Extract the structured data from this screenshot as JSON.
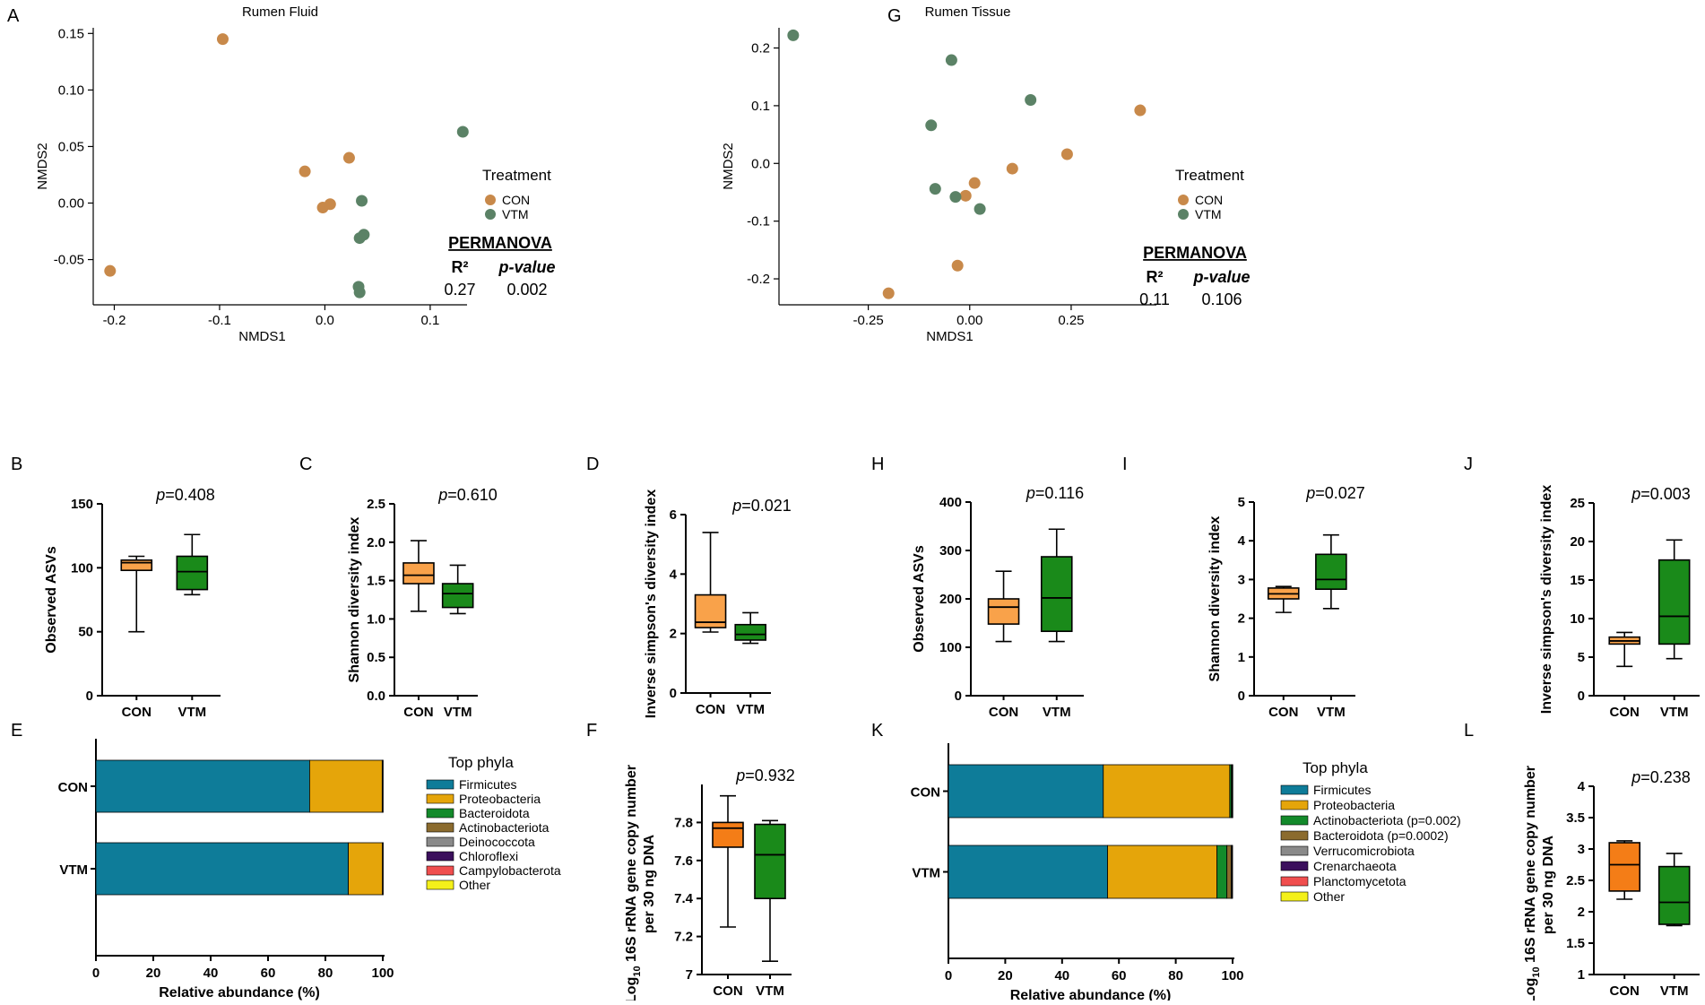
{
  "panel_labels": {
    "A": "A",
    "B": "B",
    "C": "C",
    "D": "D",
    "E": "E",
    "F": "F",
    "G": "G",
    "H": "H",
    "I": "I",
    "J": "J",
    "K": "K",
    "L": "L"
  },
  "colors": {
    "con_point": "#C8894A",
    "vtm_point": "#5B8266",
    "con_box": "#F9A24A",
    "vtm_box": "#1A8A1A",
    "con_box_qpcr": "#F47D17"
  },
  "chart_data": [
    {
      "id": "A",
      "type": "scatter",
      "title": "Rumen Fluid",
      "xlabel": "NMDS1",
      "ylabel": "NMDS2",
      "xlim": [
        -0.22,
        0.135
      ],
      "ylim": [
        -0.09,
        0.155
      ],
      "xticks": [
        -0.2,
        -0.1,
        0.0,
        0.1
      ],
      "xtick_labels": [
        "-0.2",
        "-0.1",
        "0.0",
        "0.1"
      ],
      "yticks": [
        -0.05,
        0.0,
        0.05,
        0.1,
        0.15
      ],
      "ytick_labels": [
        "-0.05",
        "0.00",
        "0.05",
        "0.10",
        "0.15"
      ],
      "legend_title": "Treatment",
      "series": [
        {
          "name": "CON",
          "points": [
            [
              -0.097,
              0.145
            ],
            [
              -0.019,
              0.028
            ],
            [
              0.023,
              0.04
            ],
            [
              -0.002,
              -0.004
            ],
            [
              0.005,
              -0.001
            ],
            [
              -0.204,
              -0.06
            ]
          ]
        },
        {
          "name": "VTM",
          "points": [
            [
              0.131,
              0.063
            ],
            [
              0.035,
              0.002
            ],
            [
              0.037,
              -0.028
            ],
            [
              0.033,
              -0.031
            ],
            [
              0.032,
              -0.074
            ],
            [
              0.033,
              -0.079
            ]
          ]
        }
      ],
      "permanova": {
        "heading": "PERMANOVA",
        "r2_label": "R²",
        "p_label": "p-value",
        "r2": "0.27",
        "p": "0.002"
      }
    },
    {
      "id": "G",
      "type": "scatter",
      "title": "Rumen Tissue",
      "xlabel": "NMDS1",
      "ylabel": "NMDS2",
      "xlim": [
        -0.47,
        0.46
      ],
      "ylim": [
        -0.245,
        0.235
      ],
      "xticks": [
        -0.25,
        0.0,
        0.25
      ],
      "xtick_labels": [
        "-0.25",
        "0.00",
        "0.25"
      ],
      "yticks": [
        -0.2,
        -0.1,
        0.0,
        0.1,
        0.2
      ],
      "ytick_labels": [
        "-0.2",
        "-0.1",
        "0.0",
        "0.1",
        "0.2"
      ],
      "legend_title": "Treatment",
      "series": [
        {
          "name": "CON",
          "points": [
            [
              0.42,
              0.092
            ],
            [
              0.24,
              0.016
            ],
            [
              0.105,
              -0.009
            ],
            [
              0.012,
              -0.034
            ],
            [
              -0.01,
              -0.056
            ],
            [
              -0.03,
              -0.177
            ],
            [
              -0.2,
              -0.225
            ]
          ]
        },
        {
          "name": "VTM",
          "points": [
            [
              -0.435,
              0.222
            ],
            [
              -0.045,
              0.179
            ],
            [
              0.15,
              0.11
            ],
            [
              -0.095,
              0.066
            ],
            [
              -0.085,
              -0.044
            ],
            [
              -0.035,
              -0.058
            ],
            [
              0.025,
              -0.079
            ]
          ]
        }
      ],
      "permanova": {
        "heading": "PERMANOVA",
        "r2_label": "R²",
        "p_label": "p-value",
        "r2": "0.11",
        "p": "0.106"
      }
    },
    {
      "id": "B",
      "type": "boxplot",
      "ylabel": "Observed ASVs",
      "pvalue": "0.408",
      "ylim": [
        0,
        150
      ],
      "yticks": [
        0,
        50,
        100,
        150
      ],
      "ytick_labels": [
        "0",
        "50",
        "100",
        "150"
      ],
      "categories": [
        "CON",
        "VTM"
      ],
      "boxes": [
        {
          "name": "CON",
          "min": 50,
          "q1": 98,
          "median": 104,
          "q3": 106,
          "max": 109
        },
        {
          "name": "VTM",
          "min": 79,
          "q1": 83,
          "median": 97,
          "q3": 109,
          "max": 126
        }
      ]
    },
    {
      "id": "C",
      "type": "boxplot",
      "ylabel": "Shannon diversity index",
      "pvalue": "0.610",
      "ylim": [
        0,
        2.5
      ],
      "yticks": [
        0,
        0.5,
        1.0,
        1.5,
        2.0,
        2.5
      ],
      "ytick_labels": [
        "0.0",
        "0.5",
        "1.0",
        "1.5",
        "2.0",
        "2.5"
      ],
      "categories": [
        "CON",
        "VTM"
      ],
      "boxes": [
        {
          "name": "CON",
          "min": 1.1,
          "q1": 1.46,
          "median": 1.57,
          "q3": 1.73,
          "max": 2.02
        },
        {
          "name": "VTM",
          "min": 1.07,
          "q1": 1.15,
          "median": 1.33,
          "q3": 1.46,
          "max": 1.7
        }
      ]
    },
    {
      "id": "D",
      "type": "boxplot",
      "ylabel": "Inverse simpson's diversity index",
      "pvalue": "0.021",
      "ylim": [
        0,
        6
      ],
      "yticks": [
        0,
        2,
        4,
        6
      ],
      "ytick_labels": [
        "0",
        "2",
        "4",
        "6"
      ],
      "categories": [
        "CON",
        "VTM"
      ],
      "boxes": [
        {
          "name": "CON",
          "min": 2.05,
          "q1": 2.2,
          "median": 2.38,
          "q3": 3.3,
          "max": 5.4
        },
        {
          "name": "VTM",
          "min": 1.67,
          "q1": 1.78,
          "median": 1.97,
          "q3": 2.3,
          "max": 2.7
        }
      ]
    },
    {
      "id": "H",
      "type": "boxplot",
      "ylabel": "Observed ASVs",
      "pvalue": "0.116",
      "ylim": [
        0,
        400
      ],
      "yticks": [
        0,
        100,
        200,
        300,
        400
      ],
      "ytick_labels": [
        "0",
        "100",
        "200",
        "300",
        "400"
      ],
      "categories": [
        "CON",
        "VTM"
      ],
      "boxes": [
        {
          "name": "CON",
          "min": 112,
          "q1": 148,
          "median": 183,
          "q3": 200,
          "max": 257
        },
        {
          "name": "VTM",
          "min": 112,
          "q1": 133,
          "median": 202,
          "q3": 287,
          "max": 344
        }
      ]
    },
    {
      "id": "I",
      "type": "boxplot",
      "ylabel": "Shannon diversity index",
      "pvalue": "0.027",
      "ylim": [
        0,
        5
      ],
      "yticks": [
        0,
        1,
        2,
        3,
        4,
        5
      ],
      "ytick_labels": [
        "0",
        "1",
        "2",
        "3",
        "4",
        "5"
      ],
      "categories": [
        "CON",
        "VTM"
      ],
      "boxes": [
        {
          "name": "CON",
          "min": 2.15,
          "q1": 2.5,
          "median": 2.63,
          "q3": 2.78,
          "max": 2.82
        },
        {
          "name": "VTM",
          "min": 2.25,
          "q1": 2.75,
          "median": 3.0,
          "q3": 3.65,
          "max": 4.15
        }
      ]
    },
    {
      "id": "J",
      "type": "boxplot",
      "ylabel": "Inverse simpson's diversity index",
      "pvalue": "0.003",
      "ylim": [
        0,
        25
      ],
      "yticks": [
        0,
        5,
        10,
        15,
        20,
        25
      ],
      "ytick_labels": [
        "0",
        "5",
        "10",
        "15",
        "20",
        "25"
      ],
      "categories": [
        "CON",
        "VTM"
      ],
      "boxes": [
        {
          "name": "CON",
          "min": 3.8,
          "q1": 6.7,
          "median": 7.1,
          "q3": 7.6,
          "max": 8.2
        },
        {
          "name": "VTM",
          "min": 4.8,
          "q1": 6.7,
          "median": 10.3,
          "q3": 17.6,
          "max": 20.2
        }
      ]
    },
    {
      "id": "F",
      "type": "boxplot",
      "ylabel_parts": {
        "pre": "Log",
        "sub": "10",
        "post": " 16S rRNA gene copy number",
        "line2": "per 30 ng DNA"
      },
      "pvalue": "0.932",
      "ylim": [
        7.0,
        8.0
      ],
      "yticks": [
        7.0,
        7.2,
        7.4,
        7.6,
        7.8
      ],
      "ytick_labels": [
        "7",
        "7.2",
        "7.4",
        "7.6",
        "7.8"
      ],
      "categories": [
        "CON",
        "VTM"
      ],
      "boxes": [
        {
          "name": "CON",
          "min": 7.25,
          "q1": 7.67,
          "median": 7.77,
          "q3": 7.8,
          "max": 7.94
        },
        {
          "name": "VTM",
          "min": 7.07,
          "q1": 7.4,
          "median": 7.63,
          "q3": 7.79,
          "max": 7.81
        }
      ]
    },
    {
      "id": "L",
      "type": "boxplot",
      "ylabel_parts": {
        "pre": "Log",
        "sub": "10",
        "post": " 16S rRNA gene copy number",
        "line2": "per 30 ng DNA"
      },
      "pvalue": "0.238",
      "ylim": [
        1.0,
        4.0
      ],
      "yticks": [
        1,
        1.5,
        2,
        2.5,
        3,
        3.5,
        4
      ],
      "ytick_labels": [
        "1",
        "1.5",
        "2",
        "2.5",
        "3",
        "3.5",
        "4"
      ],
      "categories": [
        "CON",
        "VTM"
      ],
      "boxes": [
        {
          "name": "CON",
          "min": 2.2,
          "q1": 2.33,
          "median": 2.75,
          "q3": 3.1,
          "max": 3.13
        },
        {
          "name": "VTM",
          "min": 1.78,
          "q1": 1.8,
          "median": 2.15,
          "q3": 2.72,
          "max": 2.93
        }
      ]
    },
    {
      "id": "E",
      "type": "bar",
      "orientation": "horizontal-stacked",
      "xlabel": "Relative abundance (%)",
      "xlim": [
        0,
        100
      ],
      "xticks": [
        0,
        20,
        40,
        60,
        80,
        100
      ],
      "xtick_labels": [
        "0",
        "20",
        "40",
        "60",
        "80",
        "100"
      ],
      "categories": [
        "CON",
        "VTM"
      ],
      "legend_title": "Top phyla",
      "series": [
        {
          "name": "Firmicutes",
          "color": "#0E7C99",
          "values": [
            74.5,
            88
          ]
        },
        {
          "name": "Proteobacteria",
          "color": "#E5A50A",
          "values": [
            25.3,
            11.9
          ]
        },
        {
          "name": "Bacteroidota",
          "color": "#138A2B",
          "values": [
            0.1,
            0.05
          ]
        },
        {
          "name": "Actinobacteriota",
          "color": "#8B6B2E",
          "values": [
            0.05,
            0.02
          ]
        },
        {
          "name": "Deinococcota",
          "color": "#8A8A8A",
          "values": [
            0.02,
            0.01
          ]
        },
        {
          "name": "Chloroflexi",
          "color": "#3B0F5C",
          "values": [
            0.01,
            0.01
          ]
        },
        {
          "name": "Campylobacterota",
          "color": "#F04E4E",
          "values": [
            0.01,
            0.005
          ]
        },
        {
          "name": "Other",
          "color": "#F4F01A",
          "values": [
            0.01,
            0.005
          ]
        }
      ]
    },
    {
      "id": "K",
      "type": "bar",
      "orientation": "horizontal-stacked",
      "xlabel": "Relative abundance (%)",
      "xlim": [
        0,
        100
      ],
      "xticks": [
        0,
        20,
        40,
        60,
        80,
        100
      ],
      "xtick_labels": [
        "0",
        "20",
        "40",
        "60",
        "80",
        "100"
      ],
      "categories": [
        "CON",
        "VTM"
      ],
      "legend_title": "Top phyla",
      "series": [
        {
          "name": "Firmicutes",
          "color": "#0E7C99",
          "values": [
            54.5,
            56
          ]
        },
        {
          "name": "Proteobacteria",
          "color": "#E5A50A",
          "values": [
            44.5,
            38.5
          ]
        },
        {
          "name": "Actinobacteriota (p=0.002)",
          "color": "#138A2B",
          "values": [
            0.6,
            3.5
          ]
        },
        {
          "name": "Bacteroidota (p=0.0002)",
          "color": "#8B6B2E",
          "values": [
            0.2,
            1.5
          ]
        },
        {
          "name": "Verrucomicrobiota",
          "color": "#8A8A8A",
          "values": [
            0.1,
            0.2
          ]
        },
        {
          "name": "Crenarchaeota",
          "color": "#3B0F5C",
          "values": [
            0.05,
            0.1
          ]
        },
        {
          "name": "Planctomycetota",
          "color": "#F04E4E",
          "values": [
            0.02,
            0.1
          ]
        },
        {
          "name": "Other",
          "color": "#F4F01A",
          "values": [
            0.03,
            0.1
          ]
        }
      ]
    }
  ]
}
